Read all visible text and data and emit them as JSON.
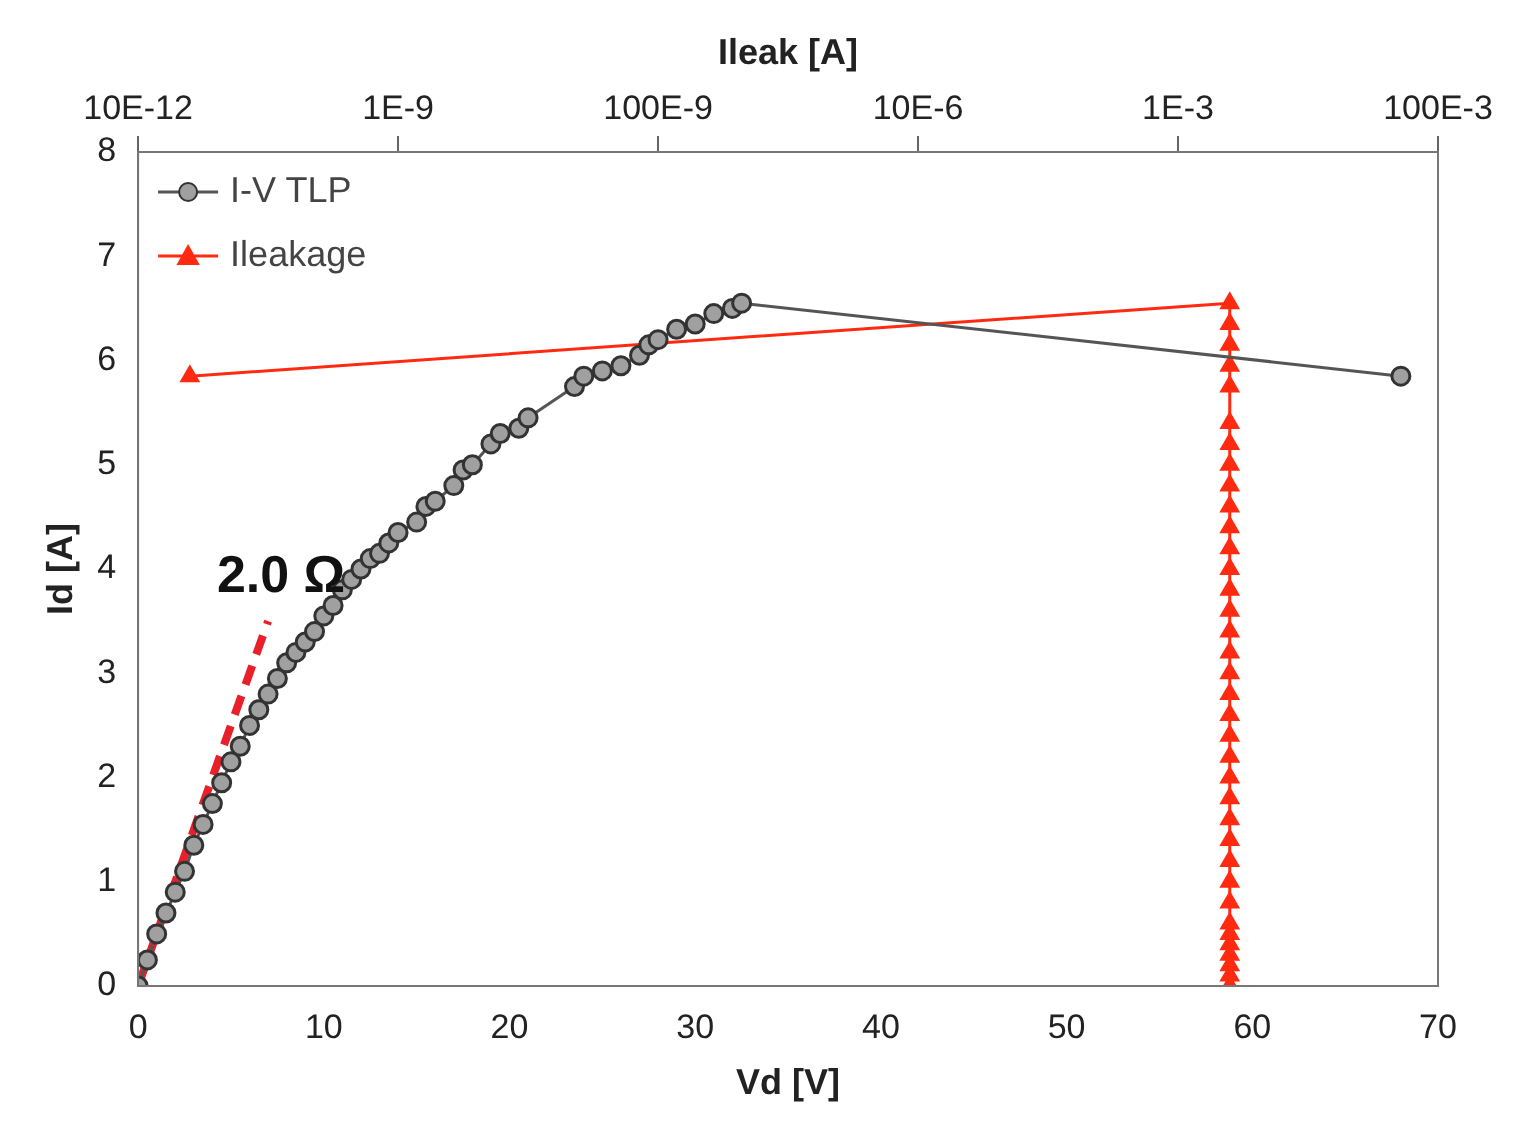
{
  "chart_data": {
    "type": "line",
    "xlabel": "Vd [V]",
    "ylabel": "Id [A]",
    "x2label": "Ileak [A]",
    "xlim": [
      0,
      70
    ],
    "xticks": [
      0,
      10,
      20,
      30,
      40,
      50,
      60,
      70
    ],
    "x2lim": [
      1e-11,
      0.1
    ],
    "x2ticks": [
      {
        "value": 1e-11,
        "label": "10E-12"
      },
      {
        "value": 1e-09,
        "label": "1E-9"
      },
      {
        "value": 1e-07,
        "label": "100E-9"
      },
      {
        "value": 1e-05,
        "label": "10E-6"
      },
      {
        "value": 0.001,
        "label": "1E-3"
      },
      {
        "value": 0.1,
        "label": "100E-3"
      }
    ],
    "log": "x2",
    "ylim": [
      0,
      8
    ],
    "yticks": [
      0,
      1,
      2,
      3,
      4,
      5,
      6,
      7,
      8
    ],
    "grid": false,
    "legend": "top left",
    "series": [
      {
        "name": "I-V TLP",
        "marker": "circle",
        "color": "#555555",
        "x": [
          0,
          0.5,
          1,
          1.5,
          2,
          2.5,
          3,
          3.5,
          4,
          4.5,
          5,
          5.5,
          6,
          6.5,
          7,
          7.5,
          8,
          8.5,
          9,
          9.5,
          10,
          10.5,
          11,
          11.5,
          12,
          12.5,
          13,
          13.5,
          14,
          15,
          15.5,
          16,
          17,
          17.5,
          18,
          19,
          19.5,
          20.5,
          21,
          23.5,
          24,
          25,
          26,
          27,
          27.5,
          28,
          29,
          30,
          31,
          32,
          32.5,
          68
        ],
        "values": [
          0,
          0.25,
          0.5,
          0.7,
          0.9,
          1.1,
          1.35,
          1.55,
          1.75,
          1.95,
          2.15,
          2.3,
          2.5,
          2.65,
          2.8,
          2.95,
          3.1,
          3.2,
          3.3,
          3.4,
          3.55,
          3.65,
          3.8,
          3.9,
          4.0,
          4.1,
          4.15,
          4.25,
          4.35,
          4.45,
          4.6,
          4.65,
          4.8,
          4.95,
          5.0,
          5.2,
          5.3,
          5.35,
          5.45,
          5.75,
          5.85,
          5.9,
          5.95,
          6.05,
          6.15,
          6.2,
          6.3,
          6.35,
          6.45,
          6.5,
          6.55,
          5.85
        ]
      },
      {
        "name": "Ileakage",
        "axis": "x2",
        "marker": "triangle",
        "color": "#ff2a10",
        "x": [
          2.5e-11,
          0.0025,
          0.0025,
          0.0025,
          0.0025,
          0.0025,
          0.0025,
          0.0025,
          0.0025,
          0.0025,
          0.0025,
          0.0025,
          0.0025,
          0.0025,
          0.0025,
          0.0025,
          0.0025,
          0.0025,
          0.0025,
          0.0025,
          0.0025,
          0.0025,
          0.0025,
          0.0025,
          0.0025,
          0.0025,
          0.0025,
          0.0025,
          0.0025,
          0.0025,
          0.0025,
          0.0025,
          0.0025,
          0.0025,
          0.0025,
          0.0025,
          0.0025
        ],
        "values": [
          5.85,
          6.55,
          6.35,
          6.15,
          5.95,
          5.75,
          5.4,
          5.2,
          5.0,
          4.8,
          4.6,
          4.4,
          4.2,
          4.0,
          3.8,
          3.6,
          3.4,
          3.2,
          3.0,
          2.8,
          2.6,
          2.4,
          2.2,
          2.0,
          1.8,
          1.6,
          1.4,
          1.2,
          1.0,
          0.8,
          0.6,
          0.5,
          0.4,
          0.3,
          0.2,
          0.1,
          0
        ]
      },
      {
        "marker": "none",
        "line_style": "dashed",
        "color": "#e8202a",
        "x": [
          0,
          7
        ],
        "values": [
          0,
          3.5
        ]
      }
    ],
    "annotations": [
      "2.0 Ω"
    ]
  }
}
